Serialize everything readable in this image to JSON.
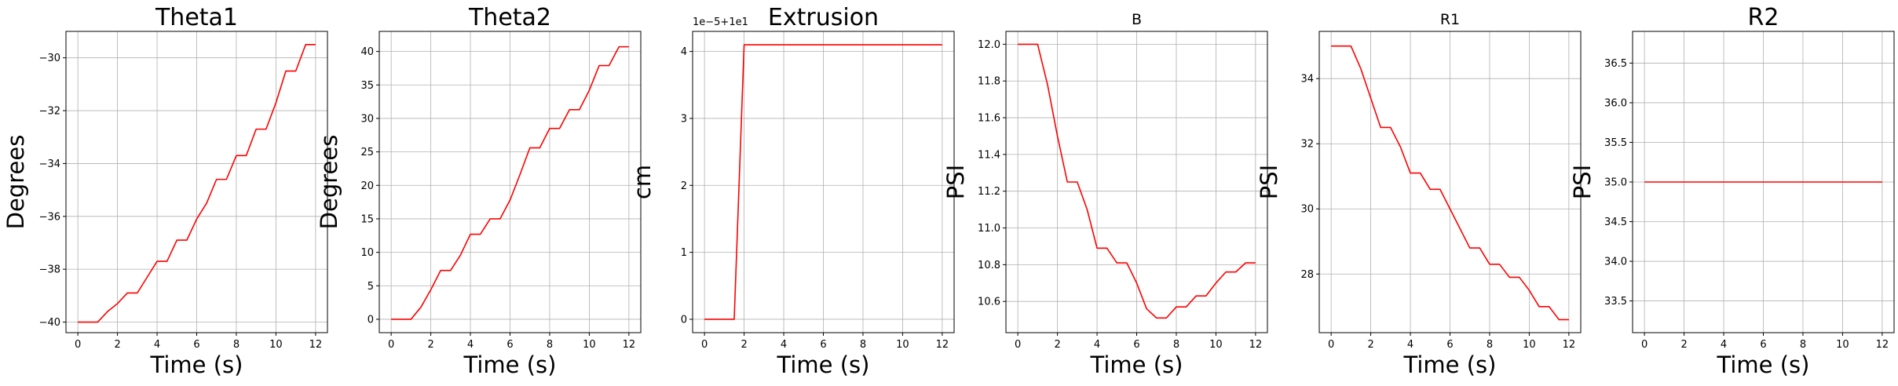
{
  "chart_data": [
    {
      "type": "line",
      "title": "Theta1",
      "title_size": "large",
      "xlabel": "Time (s)",
      "ylabel": "Degrees",
      "xlim": [
        -0.6,
        12.6
      ],
      "ylim": [
        -40.4,
        -29.0
      ],
      "xticks": [
        0,
        2,
        4,
        6,
        8,
        10,
        12
      ],
      "yticks": [
        -40,
        -38,
        -36,
        -34,
        -32,
        -30
      ],
      "ytick_labels": [
        "−40",
        "−38",
        "−36",
        "−34",
        "−32",
        "−30"
      ],
      "offset_text": "",
      "grid": true,
      "series": [
        {
          "color": "#ff0000",
          "x": [
            0,
            0.5,
            1,
            1.5,
            2,
            2.5,
            3,
            3.5,
            4,
            4.5,
            5,
            5.5,
            6,
            6.5,
            7,
            7.5,
            8,
            8.5,
            9,
            9.5,
            10,
            10.5,
            11,
            11.5,
            12
          ],
          "y": [
            -40.0,
            -40.0,
            -40.0,
            -39.6,
            -39.3,
            -38.9,
            -38.9,
            -38.3,
            -37.7,
            -37.7,
            -36.9,
            -36.9,
            -36.1,
            -35.5,
            -34.6,
            -34.6,
            -33.7,
            -33.7,
            -32.7,
            -32.7,
            -31.7,
            -30.5,
            -30.5,
            -29.5,
            -29.5
          ]
        }
      ]
    },
    {
      "type": "line",
      "title": "Theta2",
      "title_size": "large",
      "xlabel": "Time (s)",
      "ylabel": "Degrees",
      "xlim": [
        -0.6,
        12.6
      ],
      "ylim": [
        -2.0,
        43.0
      ],
      "xticks": [
        0,
        2,
        4,
        6,
        8,
        10,
        12
      ],
      "yticks": [
        0,
        5,
        10,
        15,
        20,
        25,
        30,
        35,
        40
      ],
      "ytick_labels": [
        "0",
        "5",
        "10",
        "15",
        "20",
        "25",
        "30",
        "35",
        "40"
      ],
      "offset_text": "",
      "grid": true,
      "series": [
        {
          "color": "#ff0000",
          "x": [
            0,
            0.5,
            1,
            1.5,
            2,
            2.5,
            3,
            3.5,
            4,
            4.5,
            5,
            5.5,
            6,
            6.5,
            7,
            7.5,
            8,
            8.5,
            9,
            9.5,
            10,
            10.5,
            11,
            11.5,
            12
          ],
          "y": [
            0,
            0,
            0,
            1.8,
            4.4,
            7.3,
            7.3,
            9.6,
            12.7,
            12.7,
            15.0,
            15.0,
            17.8,
            21.6,
            25.6,
            25.6,
            28.5,
            28.5,
            31.3,
            31.3,
            34.2,
            37.9,
            37.9,
            40.7,
            40.7
          ]
        }
      ]
    },
    {
      "type": "line",
      "title": "Extrusion",
      "title_size": "large",
      "xlabel": "Time (s)",
      "ylabel": "cm",
      "xlim": [
        -0.6,
        12.6
      ],
      "ylim": [
        -0.2,
        4.3
      ],
      "xticks": [
        0,
        2,
        4,
        6,
        8,
        10,
        12
      ],
      "yticks": [
        0,
        1,
        2,
        3,
        4
      ],
      "ytick_labels": [
        "0",
        "1",
        "2",
        "3",
        "4"
      ],
      "offset_text": "1e−5+1e1",
      "grid": true,
      "series": [
        {
          "color": "#ff0000",
          "x": [
            0,
            0.5,
            1,
            1.5,
            2,
            12
          ],
          "y": [
            0,
            0,
            0,
            0,
            4.1,
            4.1
          ]
        }
      ]
    },
    {
      "type": "line",
      "title": "B",
      "title_size": "small",
      "xlabel": "Time (s)",
      "ylabel": "PSI",
      "xlim": [
        -0.6,
        12.6
      ],
      "ylim": [
        10.43,
        12.07
      ],
      "xticks": [
        0,
        2,
        4,
        6,
        8,
        10,
        12
      ],
      "yticks": [
        10.6,
        10.8,
        11.0,
        11.2,
        11.4,
        11.6,
        11.8,
        12.0
      ],
      "ytick_labels": [
        "10.6",
        "10.8",
        "11.0",
        "11.2",
        "11.4",
        "11.6",
        "11.8",
        "12.0"
      ],
      "offset_text": "",
      "grid": true,
      "series": [
        {
          "color": "#ff0000",
          "x": [
            0,
            0.5,
            1,
            1.5,
            2,
            2.5,
            3,
            3.5,
            4,
            4.5,
            5,
            5.5,
            6,
            6.5,
            7,
            7.5,
            8,
            8.5,
            9,
            9.5,
            10,
            10.5,
            11,
            11.5,
            12
          ],
          "y": [
            12.0,
            12.0,
            12.0,
            11.78,
            11.5,
            11.25,
            11.25,
            11.1,
            10.89,
            10.89,
            10.81,
            10.81,
            10.7,
            10.56,
            10.51,
            10.51,
            10.57,
            10.57,
            10.63,
            10.63,
            10.7,
            10.76,
            10.76,
            10.81,
            10.81
          ]
        }
      ]
    },
    {
      "type": "line",
      "title": "R1",
      "title_size": "small",
      "xlabel": "Time (s)",
      "ylabel": "PSI",
      "xlim": [
        -0.6,
        12.6
      ],
      "ylim": [
        26.2,
        35.45
      ],
      "xticks": [
        0,
        2,
        4,
        6,
        8,
        10,
        12
      ],
      "yticks": [
        28,
        30,
        32,
        34
      ],
      "ytick_labels": [
        "28",
        "30",
        "32",
        "34"
      ],
      "offset_text": "",
      "grid": true,
      "series": [
        {
          "color": "#ff0000",
          "x": [
            0,
            0.5,
            1,
            1.5,
            2,
            2.5,
            3,
            3.5,
            4,
            4.5,
            5,
            5.5,
            6,
            6.5,
            7,
            7.5,
            8,
            8.5,
            9,
            9.5,
            10,
            10.5,
            11,
            11.5,
            12
          ],
          "y": [
            35.0,
            35.0,
            35.0,
            34.3,
            33.4,
            32.5,
            32.5,
            31.9,
            31.1,
            31.1,
            30.6,
            30.6,
            30.0,
            29.4,
            28.8,
            28.8,
            28.3,
            28.3,
            27.9,
            27.9,
            27.5,
            27.0,
            27.0,
            26.6,
            26.6
          ]
        }
      ]
    },
    {
      "type": "line",
      "title": "R2",
      "title_size": "large",
      "xlabel": "Time (s)",
      "ylabel": "PSI",
      "xlim": [
        -0.6,
        12.6
      ],
      "ylim": [
        33.1,
        36.9
      ],
      "xticks": [
        0,
        2,
        4,
        6,
        8,
        10,
        12
      ],
      "yticks": [
        33.5,
        34.0,
        34.5,
        35.0,
        35.5,
        36.0,
        36.5
      ],
      "ytick_labels": [
        "33.5",
        "34.0",
        "34.5",
        "35.0",
        "35.5",
        "36.0",
        "36.5"
      ],
      "offset_text": "",
      "grid": true,
      "series": [
        {
          "color": "#ff0000",
          "x": [
            0,
            12
          ],
          "y": [
            35.0,
            35.0
          ]
        }
      ]
    }
  ]
}
